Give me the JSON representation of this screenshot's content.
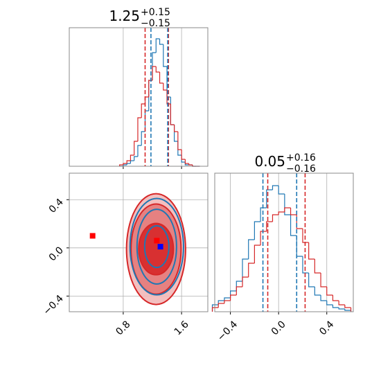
{
  "chart_data": [
    {
      "type": "histogram",
      "title": {
        "value": "1.25",
        "upper": "+0.15",
        "lower": "−0.15"
      },
      "bins": [
        0.75,
        0.8,
        0.85,
        0.9,
        0.95,
        1.0,
        1.05,
        1.1,
        1.15,
        1.2,
        1.25,
        1.3,
        1.35,
        1.4,
        1.45,
        1.5,
        1.55,
        1.6,
        1.65,
        1.7,
        1.75,
        1.8,
        1.85
      ],
      "series": [
        {
          "color": "#1f77b4",
          "values": [
            0,
            1,
            2,
            4,
            7,
            15,
            25,
            40,
            62,
            82,
            92,
            88,
            72,
            50,
            30,
            18,
            8,
            3,
            1,
            1,
            0,
            0
          ]
        },
        {
          "color": "#d62728",
          "values": [
            1,
            2,
            4,
            8,
            18,
            35,
            45,
            50,
            62,
            72,
            68,
            60,
            55,
            45,
            30,
            25,
            12,
            5,
            2,
            1,
            0,
            0
          ]
        }
      ],
      "quantiles": [
        {
          "color": "#d62728",
          "values": [
            1.1,
            1.42
          ]
        },
        {
          "color": "#1f77b4",
          "values": [
            1.18,
            1.41
          ]
        }
      ],
      "xlim": [
        0.06,
        1.96
      ],
      "xticks": [
        0.8,
        1.6
      ],
      "ylim": [
        0,
        100
      ],
      "grid": true
    },
    {
      "type": "contour",
      "contours": [
        {
          "color": "#d62728",
          "fill": [
            "#f2b8b8",
            "#e47a7a",
            "#d62728"
          ],
          "levels": [
            {
              "x": 1.25,
              "y": -0.01,
              "rx": 0.405,
              "ry": 0.46
            },
            {
              "x": 1.25,
              "y": -0.01,
              "rx": 0.343,
              "ry": 0.374
            },
            {
              "x": 1.25,
              "y": -0.01,
              "rx": 0.238,
              "ry": 0.213
            }
          ]
        },
        {
          "color": "#1f77b4",
          "levels": [
            {
              "x": 1.26,
              "y": 0.01,
              "rx": 0.367,
              "ry": 0.4
            },
            {
              "x": 1.26,
              "y": 0.01,
              "rx": 0.271,
              "ry": 0.31
            },
            {
              "x": 1.26,
              "y": 0.01,
              "rx": 0.167,
              "ry": 0.173
            }
          ]
        }
      ],
      "points": [
        {
          "color": "#ff0000",
          "x": 0.38,
          "y": 0.1
        },
        {
          "color": "#ff0000",
          "x": 1.26,
          "y": 0.06
        },
        {
          "color": "#0000ff",
          "x": 1.31,
          "y": 0.01
        }
      ],
      "xlim": [
        0.06,
        1.96
      ],
      "ylim": [
        -0.53,
        0.62
      ],
      "xticks": [
        0.8,
        1.6
      ],
      "yticks": [
        {
          "value": -0.4,
          "label": "−0.4"
        },
        {
          "value": 0,
          "label": "0.0"
        },
        0.4
      ],
      "grid": true
    },
    {
      "type": "histogram",
      "title": {
        "value": "0.05",
        "upper": "+0.16",
        "lower": "−0.16"
      },
      "bins": [
        -0.55,
        -0.5,
        -0.45,
        -0.4,
        -0.35,
        -0.3,
        -0.25,
        -0.2,
        -0.15,
        -0.1,
        -0.05,
        0,
        0.05,
        0.1,
        0.15,
        0.2,
        0.25,
        0.3,
        0.35,
        0.4,
        0.45,
        0.5,
        0.55,
        0.6
      ],
      "series": [
        {
          "color": "#1f77b4",
          "values": [
            5,
            8,
            10,
            15,
            22,
            38,
            52,
            65,
            75,
            88,
            91,
            85,
            70,
            55,
            40,
            28,
            18,
            12,
            8,
            5,
            3,
            2,
            1
          ]
        },
        {
          "color": "#d62728",
          "values": [
            3,
            6,
            8,
            12,
            18,
            25,
            35,
            48,
            58,
            65,
            70,
            72,
            75,
            70,
            60,
            50,
            38,
            28,
            18,
            12,
            8,
            5,
            3
          ]
        }
      ],
      "quantiles": [
        {
          "color": "#1f77b4",
          "values": [
            -0.13,
            0.15
          ]
        },
        {
          "color": "#d62728",
          "values": [
            -0.09,
            0.22
          ]
        }
      ],
      "xlim": [
        -0.53,
        0.62
      ],
      "xticks": [
        {
          "value": -0.4,
          "label": "−0.4"
        },
        {
          "value": 0,
          "label": "0.0"
        },
        0.4
      ],
      "ylim": [
        0,
        100
      ],
      "grid": true
    }
  ]
}
